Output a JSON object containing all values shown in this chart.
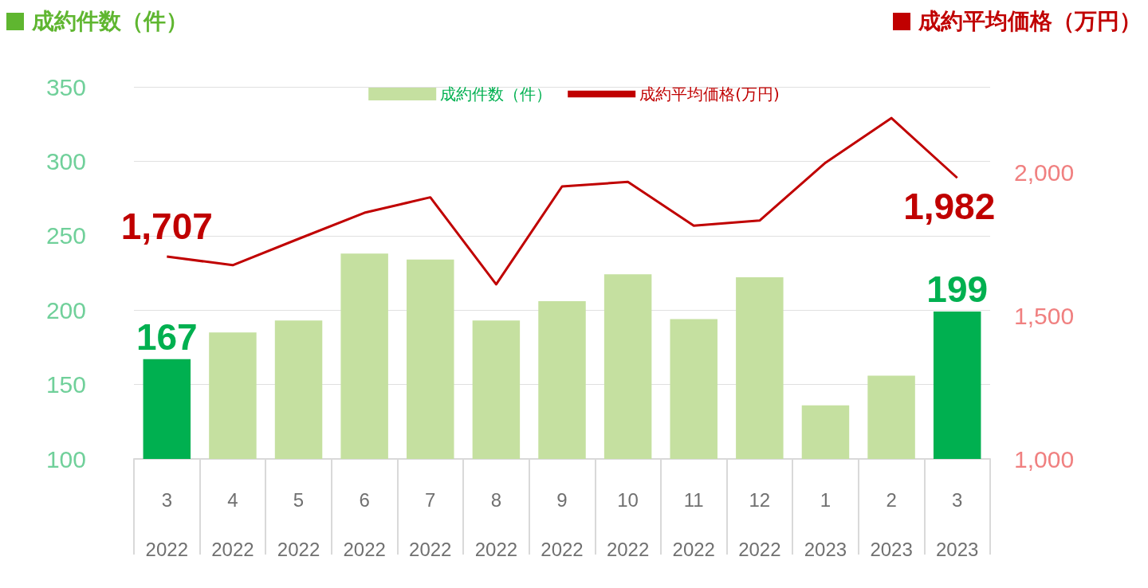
{
  "chart_data": {
    "type": "bar",
    "ylabel": "成約件数（件）",
    "y2label": "成約平均価格（万円）",
    "categories": [
      "3\n2022",
      "4\n2022",
      "5\n2022",
      "6\n2022",
      "7\n2022",
      "8\n2022",
      "9\n2022",
      "10\n2022",
      "11\n2022",
      "12\n2022",
      "1\n2023",
      "2\n2023",
      "3\n2023"
    ],
    "series": [
      {
        "name": "成約件数（件）",
        "color": "#c5e0a0",
        "colors": [
          "#00b050",
          "#c5e0a0",
          "#c5e0a0",
          "#c5e0a0",
          "#c5e0a0",
          "#c5e0a0",
          "#c5e0a0",
          "#c5e0a0",
          "#c5e0a0",
          "#c5e0a0",
          "#c5e0a0",
          "#c5e0a0",
          "#00b050"
        ],
        "values": [
          167,
          185,
          193,
          238,
          234,
          193,
          206,
          224,
          194,
          222,
          136,
          156,
          199
        ],
        "value_labels": [
          "167",
          null,
          null,
          null,
          null,
          null,
          null,
          null,
          null,
          null,
          null,
          null,
          "199"
        ]
      },
      {
        "name": "成約平均価格(万円)",
        "type": "line",
        "axis": "y2",
        "color": "#c00000",
        "values": [
          1707,
          1677,
          1769,
          1860,
          1914,
          1610,
          1952,
          1968,
          1815,
          1833,
          2035,
          2191,
          1982
        ],
        "value_labels": [
          "1,707",
          null,
          null,
          null,
          null,
          null,
          null,
          null,
          null,
          null,
          null,
          null,
          "1,982"
        ]
      }
    ],
    "ylim": [
      100,
      350
    ],
    "yticks": [
      100,
      150,
      200,
      250,
      300,
      350
    ],
    "y2lim": [
      1000,
      2300
    ],
    "y2ticks": [
      {
        "value": 1000,
        "label": "1,000"
      },
      {
        "value": 1500,
        "label": "1,500"
      },
      {
        "value": 2000,
        "label": "2,000"
      }
    ],
    "grid": "y",
    "legend": "top",
    "marker": "none",
    "line_style": "solid"
  }
}
